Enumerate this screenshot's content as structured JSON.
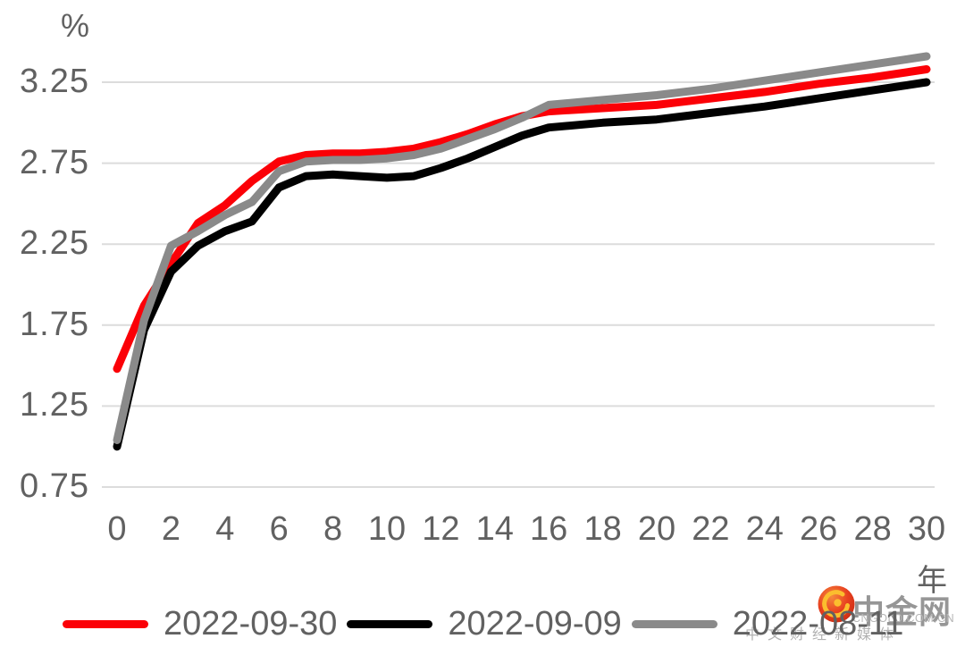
{
  "chart_data": {
    "type": "line",
    "title": "",
    "y_axis": {
      "unit": "%",
      "ticks": [
        3.25,
        2.75,
        2.25,
        1.75,
        1.25,
        0.75
      ],
      "min": 0.75,
      "max": 3.25,
      "grid": true
    },
    "x_axis": {
      "unit": "年",
      "ticks": [
        0,
        2,
        4,
        6,
        8,
        10,
        12,
        14,
        16,
        18,
        20,
        22,
        24,
        26,
        28,
        30
      ],
      "min": 0,
      "max": 30
    },
    "x": [
      0,
      1,
      2,
      3,
      4,
      5,
      6,
      7,
      8,
      9,
      10,
      11,
      12,
      13,
      14,
      15,
      16,
      18,
      20,
      22,
      24,
      26,
      28,
      30
    ],
    "series": [
      {
        "name": "2022-09-30",
        "color": "#fb0007",
        "values": [
          1.48,
          1.87,
          2.13,
          2.38,
          2.49,
          2.64,
          2.76,
          2.8,
          2.81,
          2.81,
          2.82,
          2.84,
          2.88,
          2.93,
          2.99,
          3.04,
          3.07,
          3.09,
          3.11,
          3.15,
          3.19,
          3.24,
          3.28,
          3.33
        ]
      },
      {
        "name": "2022-09-09",
        "color": "#000000",
        "values": [
          1.0,
          1.72,
          2.08,
          2.24,
          2.33,
          2.39,
          2.6,
          2.67,
          2.68,
          2.67,
          2.66,
          2.67,
          2.72,
          2.78,
          2.85,
          2.92,
          2.97,
          3.0,
          3.02,
          3.06,
          3.1,
          3.15,
          3.2,
          3.25
        ]
      },
      {
        "name": "2022-08-11",
        "color": "#8a8a8a",
        "values": [
          1.04,
          1.78,
          2.24,
          2.33,
          2.43,
          2.51,
          2.7,
          2.76,
          2.77,
          2.77,
          2.78,
          2.8,
          2.84,
          2.9,
          2.96,
          3.03,
          3.11,
          3.14,
          3.17,
          3.21,
          3.26,
          3.31,
          3.36,
          3.41
        ]
      }
    ],
    "legend_position": "bottom",
    "grid_color": "#dcdcdc"
  },
  "watermark": {
    "brand": "中金网",
    "domain": "CNGOLD.COM.CN",
    "tagline": "中文财经新媒体",
    "logo": "cngold-swirl-logo",
    "logo_colors": {
      "circle": "#e8401f",
      "swirl": "#fbbe2e"
    }
  }
}
